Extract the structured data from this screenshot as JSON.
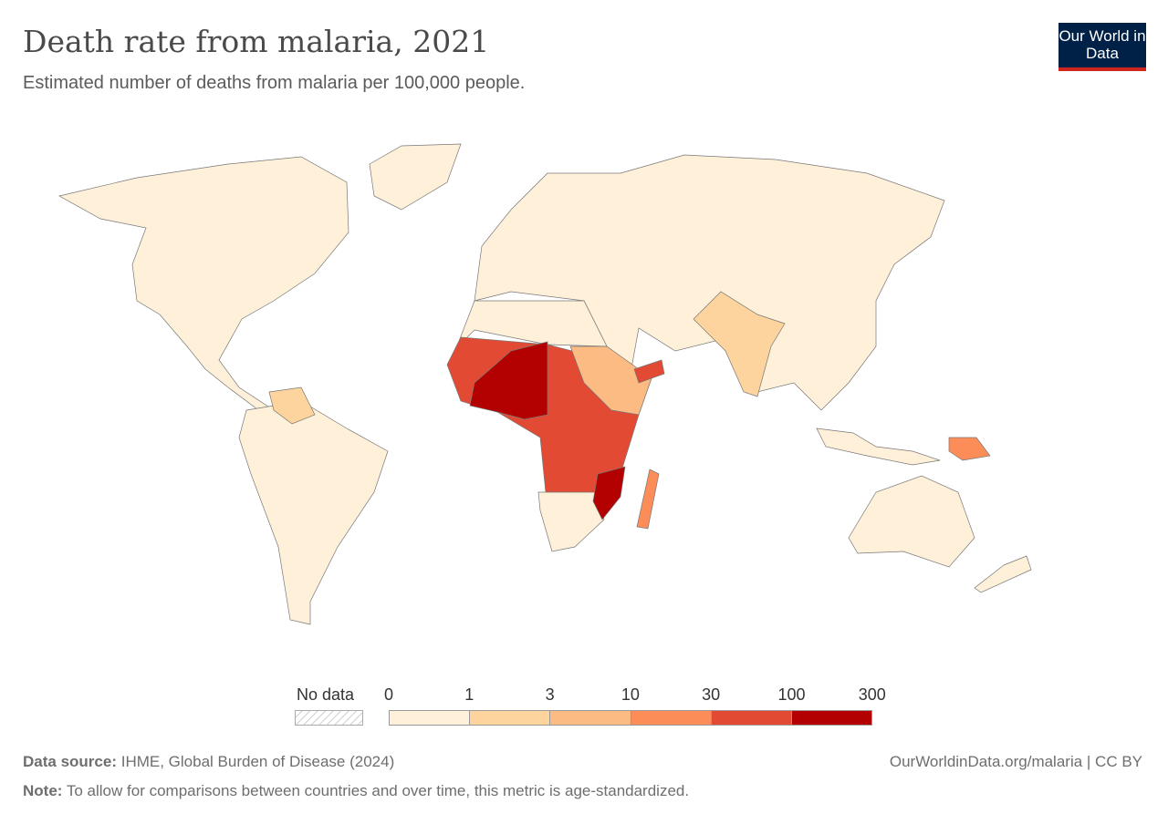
{
  "header": {
    "title": "Death rate from malaria, 2021",
    "subtitle": "Estimated number of deaths from malaria per 100,000 people.",
    "logo": "Our World in Data"
  },
  "legend": {
    "no_data": "No data",
    "ticks": [
      "0",
      "1",
      "3",
      "10",
      "30",
      "100",
      "300"
    ],
    "colors": [
      "#fef0d9",
      "#fdd49e",
      "#fdbb84",
      "#fc8d59",
      "#e34a33",
      "#b30000"
    ]
  },
  "footer": {
    "source_label": "Data source:",
    "source": "IHME, Global Burden of Disease (2024)",
    "url": "OurWorldinData.org/malaria | CC BY",
    "note_label": "Note:",
    "note": "To allow for comparisons between countries and over time, this metric is age-standardized."
  }
}
